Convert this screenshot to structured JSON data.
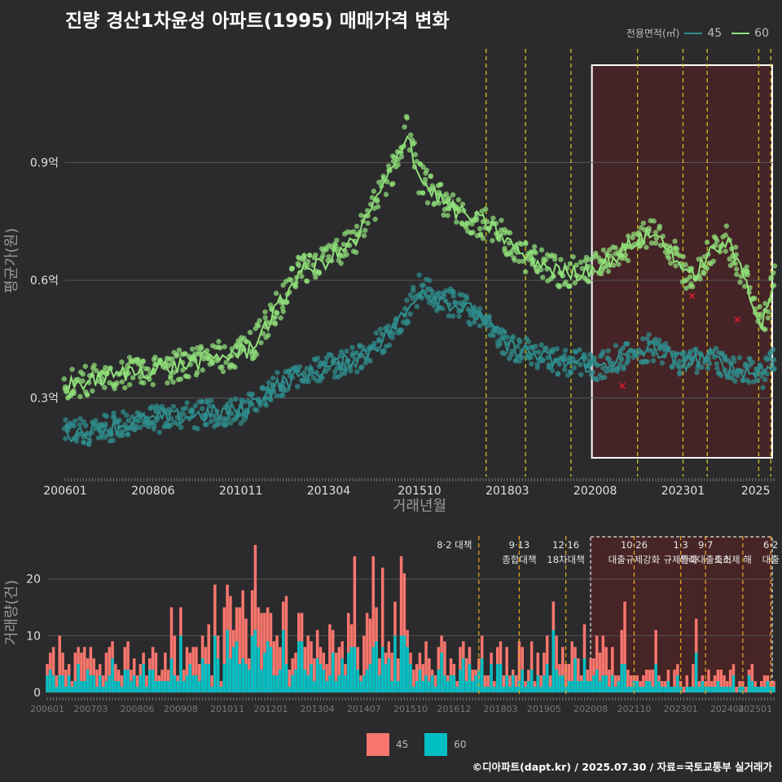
{
  "title": "진량 경산1차윤성 아파트(1995) 매매가격 변화",
  "caption": "©디아파트(dapt.kr) / 2025.07.30 / 자료=국토교통부 실거래가",
  "chart_data": [
    {
      "type": "line",
      "ylabel": "평균가(원)",
      "xlabel": "거래년월",
      "x_range": [
        "2006-01",
        "2025-07"
      ],
      "ylim": [
        0.1,
        1.2
      ],
      "y_ticks": [
        {
          "v": 0.3,
          "label": "0.3억"
        },
        {
          "v": 0.6,
          "label": "0.6억"
        },
        {
          "v": 0.9,
          "label": "0.9억"
        }
      ],
      "x_ticks": [
        "200601",
        "200806",
        "201011",
        "201304",
        "201510",
        "201803",
        "202008",
        "202301",
        "2025"
      ],
      "legend_title": "전용면적(㎡)",
      "grid": true,
      "colors": {
        "s45": "#2f8f8f",
        "s60": "#90e07a",
        "highlight": "#5a1f22",
        "vline": "#d4c21a",
        "marker_x": "#e01a2a"
      },
      "series": [
        {
          "name": "45",
          "points": [
            [
              "2006-01",
              0.21
            ],
            [
              "2007-01",
              0.22
            ],
            [
              "2008-01",
              0.24
            ],
            [
              "2009-01",
              0.25
            ],
            [
              "2010-01",
              0.26
            ],
            [
              "2011-01",
              0.27
            ],
            [
              "2011-06",
              0.31
            ],
            [
              "2012-01",
              0.34
            ],
            [
              "2013-01",
              0.37
            ],
            [
              "2014-01",
              0.4
            ],
            [
              "2014-10",
              0.45
            ],
            [
              "2015-06",
              0.52
            ],
            [
              "2015-10",
              0.58
            ],
            [
              "2016-03",
              0.56
            ],
            [
              "2016-09",
              0.54
            ],
            [
              "2017-03",
              0.52
            ],
            [
              "2017-09",
              0.49
            ],
            [
              "2018-03",
              0.43
            ],
            [
              "2018-09",
              0.42
            ],
            [
              "2019-03",
              0.4
            ],
            [
              "2019-09",
              0.39
            ],
            [
              "2020-03",
              0.39
            ],
            [
              "2020-09",
              0.38
            ],
            [
              "2021-03",
              0.4
            ],
            [
              "2021-09",
              0.41
            ],
            [
              "2022-03",
              0.43
            ],
            [
              "2022-09",
              0.4
            ],
            [
              "2023-03",
              0.39
            ],
            [
              "2023-09",
              0.41
            ],
            [
              "2024-03",
              0.38
            ],
            [
              "2024-09",
              0.37
            ],
            [
              "2025-03",
              0.36
            ],
            [
              "2025-07",
              0.4
            ]
          ]
        },
        {
          "name": "60",
          "points": [
            [
              "2006-01",
              0.33
            ],
            [
              "2007-01",
              0.35
            ],
            [
              "2008-01",
              0.37
            ],
            [
              "2009-01",
              0.38
            ],
            [
              "2010-01",
              0.4
            ],
            [
              "2011-01",
              0.42
            ],
            [
              "2011-06",
              0.47
            ],
            [
              "2012-01",
              0.55
            ],
            [
              "2012-06",
              0.62
            ],
            [
              "2013-01",
              0.64
            ],
            [
              "2014-01",
              0.7
            ],
            [
              "2014-06",
              0.78
            ],
            [
              "2015-01",
              0.88
            ],
            [
              "2015-06",
              0.98
            ],
            [
              "2015-10",
              0.86
            ],
            [
              "2016-03",
              0.82
            ],
            [
              "2016-09",
              0.78
            ],
            [
              "2017-03",
              0.76
            ],
            [
              "2017-09",
              0.74
            ],
            [
              "2018-03",
              0.7
            ],
            [
              "2018-09",
              0.66
            ],
            [
              "2019-03",
              0.64
            ],
            [
              "2019-09",
              0.62
            ],
            [
              "2020-03",
              0.62
            ],
            [
              "2020-09",
              0.64
            ],
            [
              "2021-03",
              0.66
            ],
            [
              "2021-09",
              0.7
            ],
            [
              "2022-03",
              0.72
            ],
            [
              "2022-09",
              0.68
            ],
            [
              "2023-03",
              0.6
            ],
            [
              "2023-09",
              0.66
            ],
            [
              "2024-03",
              0.7
            ],
            [
              "2024-09",
              0.62
            ],
            [
              "2025-03",
              0.48
            ],
            [
              "2025-07",
              0.6
            ]
          ]
        }
      ],
      "markers_x": [
        [
          "2021-05",
          0.33
        ],
        [
          "2023-04",
          0.56
        ],
        [
          "2024-07",
          0.5
        ]
      ],
      "highlight_range": [
        "2020-08",
        "2025-07"
      ],
      "policy_dates": [
        "2017-08",
        "2018-09",
        "2019-12",
        "2021-10",
        "2023-01",
        "2023-09",
        "2025-02",
        "2025-06"
      ]
    },
    {
      "type": "bar",
      "ylabel": "거래량(건)",
      "ylim": [
        0,
        28
      ],
      "y_ticks": [
        0,
        10,
        20
      ],
      "x_ticks": [
        "200601",
        "200703",
        "200806",
        "200908",
        "201011",
        "201201",
        "201304",
        "201407",
        "201510",
        "201612",
        "201803",
        "201905",
        "202008",
        "202110",
        "202301",
        "202404",
        "202501"
      ],
      "series_names": [
        "45",
        "60"
      ],
      "colors": {
        "s45": "#f8766d",
        "s60": "#00bfc4"
      },
      "annotations": [
        {
          "date": "2017-08",
          "line1": "8·2 대책",
          "line2": ""
        },
        {
          "date": "2018-09",
          "line1": "9·13",
          "line2": "종합대책"
        },
        {
          "date": "2019-12",
          "line1": "12·16",
          "line2": "18차대책"
        },
        {
          "date": "2021-10",
          "line1": "10·26",
          "line2": "대출규제강화"
        },
        {
          "date": "2023-01",
          "line1": "1·3",
          "line2": "규제완화"
        },
        {
          "date": "2023-09",
          "line1": "9·7",
          "line2": "특례대출축소"
        },
        {
          "date": "2024-09",
          "line1": "",
          "line2": "토허제 해"
        },
        {
          "date": "2025-06",
          "line1": "6·2",
          "line2": "대출"
        }
      ]
    }
  ],
  "legend_bottom": [
    {
      "label": "45",
      "color": "#f8766d"
    },
    {
      "label": "60",
      "color": "#00bfc4"
    }
  ]
}
